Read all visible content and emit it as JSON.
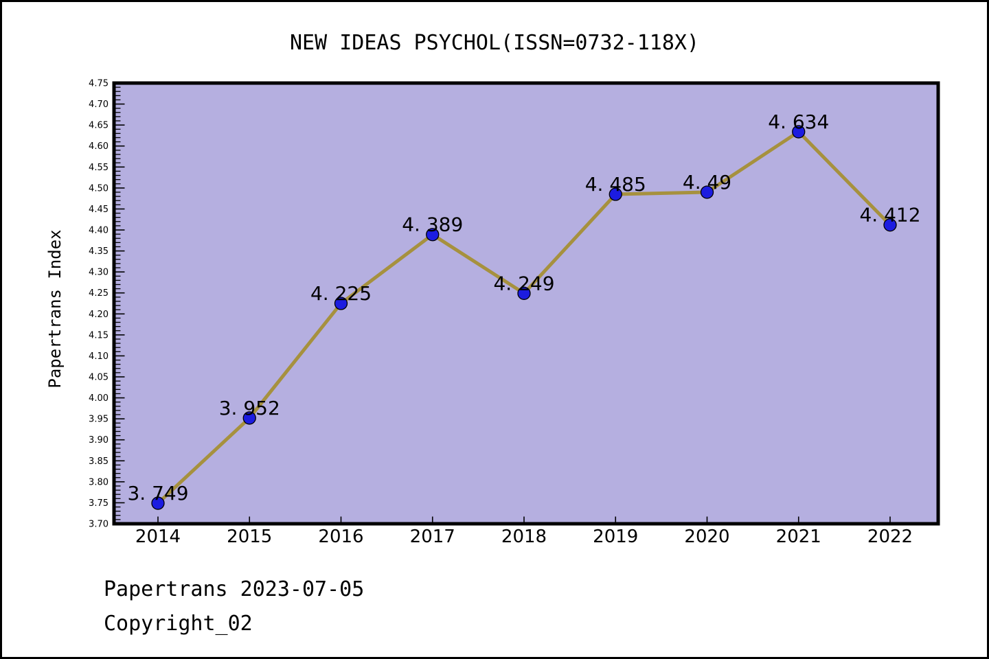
{
  "footer": {
    "line1": "Papertrans 2023-07-05",
    "line2": "Copyright_02"
  },
  "chart_data": {
    "type": "line",
    "title": "NEW IDEAS PSYCHOL(ISSN=0732-118X)",
    "xlabel": "",
    "ylabel": "Papertrans Index",
    "categories": [
      "2014",
      "2015",
      "2016",
      "2017",
      "2018",
      "2019",
      "2020",
      "2021",
      "2022"
    ],
    "values": [
      3.749,
      3.952,
      4.225,
      4.389,
      4.249,
      4.485,
      4.49,
      4.634,
      4.412
    ],
    "point_labels": [
      "3. 749",
      "3. 952",
      "4. 225",
      "4. 389",
      "4. 249",
      "4. 485",
      "4. 49",
      "4. 634",
      "4. 412"
    ],
    "series_name": "Papertrans Index",
    "ylim": [
      3.7,
      4.75
    ],
    "yticks": [
      "3.70",
      "3.75",
      "3.80",
      "3.85",
      "3.90",
      "3.95",
      "4.00",
      "4.05",
      "4.10",
      "4.15",
      "4.20",
      "4.25",
      "4.30",
      "4.35",
      "4.40",
      "4.45",
      "4.50",
      "4.55",
      "4.60",
      "4.65",
      "4.70",
      "4.75"
    ],
    "ytick_minor_step": 0.01,
    "grid": false,
    "legend": "none",
    "colors": {
      "plot_bg": "#b5afe0",
      "line": "#a6913e",
      "marker": "#1c1ce0",
      "marker_edge": "#000000",
      "axis": "#000000",
      "text": "#000000"
    }
  }
}
